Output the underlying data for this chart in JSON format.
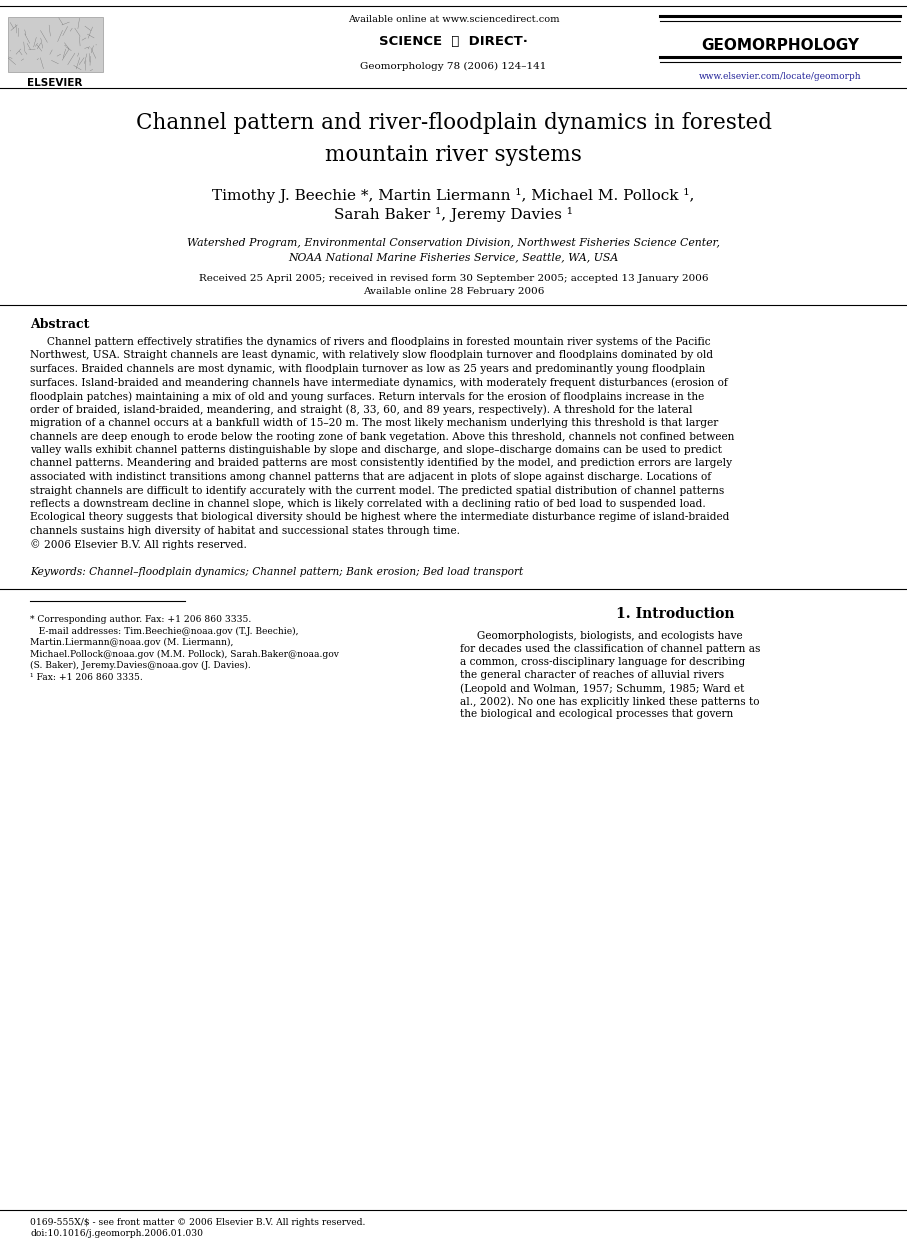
{
  "page_width": 9.07,
  "page_height": 12.38,
  "bg_color": "#ffffff",
  "header": {
    "available_online_text": "Available online at www.sciencedirect.com",
    "journal_ref": "Geomorphology 78 (2006) 124–141",
    "elsevier_label": "ELSEVIER",
    "sciencedirect_label": "SCIENCE  ⓐ  DIRECT·",
    "geomorphology_label": "GEOMORPHOLOGY",
    "website": "www.elsevier.com/locate/geomorph"
  },
  "title": "Channel pattern and river-floodplain dynamics in forested\nmountain river systems",
  "authors_line1": "Timothy J. Beechie *, Martin Liermann ¹, Michael M. Pollock ¹,",
  "authors_line2": "Sarah Baker ¹, Jeremy Davies ¹",
  "affiliation_line1": "Watershed Program, Environmental Conservation Division, Northwest Fisheries Science Center,",
  "affiliation_line2": "NOAA National Marine Fisheries Service, Seattle, WA, USA",
  "dates_line1": "Received 25 April 2005; received in revised form 30 September 2005; accepted 13 January 2006",
  "dates_line2": "Available online 28 February 2006",
  "abstract_heading": "Abstract",
  "abstract_lines": [
    "     Channel pattern effectively stratifies the dynamics of rivers and floodplains in forested mountain river systems of the Pacific",
    "Northwest, USA. Straight channels are least dynamic, with relatively slow floodplain turnover and floodplains dominated by old",
    "surfaces. Braided channels are most dynamic, with floodplain turnover as low as 25 years and predominantly young floodplain",
    "surfaces. Island-braided and meandering channels have intermediate dynamics, with moderately frequent disturbances (erosion of",
    "floodplain patches) maintaining a mix of old and young surfaces. Return intervals for the erosion of floodplains increase in the",
    "order of braided, island-braided, meandering, and straight (8, 33, 60, and 89 years, respectively). A threshold for the lateral",
    "migration of a channel occurs at a bankfull width of 15–20 m. The most likely mechanism underlying this threshold is that larger",
    "channels are deep enough to erode below the rooting zone of bank vegetation. Above this threshold, channels not confined between",
    "valley walls exhibit channel patterns distinguishable by slope and discharge, and slope–discharge domains can be used to predict",
    "channel patterns. Meandering and braided patterns are most consistently identified by the model, and prediction errors are largely",
    "associated with indistinct transitions among channel patterns that are adjacent in plots of slope against discharge. Locations of",
    "straight channels are difficult to identify accurately with the current model. The predicted spatial distribution of channel patterns",
    "reflects a downstream decline in channel slope, which is likely correlated with a declining ratio of bed load to suspended load.",
    "Ecological theory suggests that biological diversity should be highest where the intermediate disturbance regime of island-braided",
    "channels sustains high diversity of habitat and successional states through time.",
    "© 2006 Elsevier B.V. All rights reserved."
  ],
  "keywords_text": "Keywords: Channel–floodplain dynamics; Channel pattern; Bank erosion; Bed load transport",
  "section_heading": "1. Introduction",
  "intro_lines": [
    "     Geomorphologists, biologists, and ecologists have",
    "for decades used the classification of channel pattern as",
    "a common, cross-disciplinary language for describing",
    "the general character of reaches of alluvial rivers",
    "(Leopold and Wolman, 1957; Schumm, 1985; Ward et",
    "al., 2002). No one has explicitly linked these patterns to",
    "the biological and ecological processes that govern"
  ],
  "footnote_lines": [
    "* Corresponding author. Fax: +1 206 860 3335.",
    "   E-mail addresses: Tim.Beechie@noaa.gov (T.J. Beechie),",
    "Martin.Liermann@noaa.gov (M. Liermann),",
    "Michael.Pollock@noaa.gov (M.M. Pollock), Sarah.Baker@noaa.gov",
    "(S. Baker), Jeremy.Davies@noaa.gov (J. Davies).",
    "¹ Fax: +1 206 860 3335."
  ],
  "footer_line1": "0169-555X/$ - see front matter © 2006 Elsevier B.V. All rights reserved.",
  "footer_line2": "doi:10.1016/j.geomorph.2006.01.030"
}
